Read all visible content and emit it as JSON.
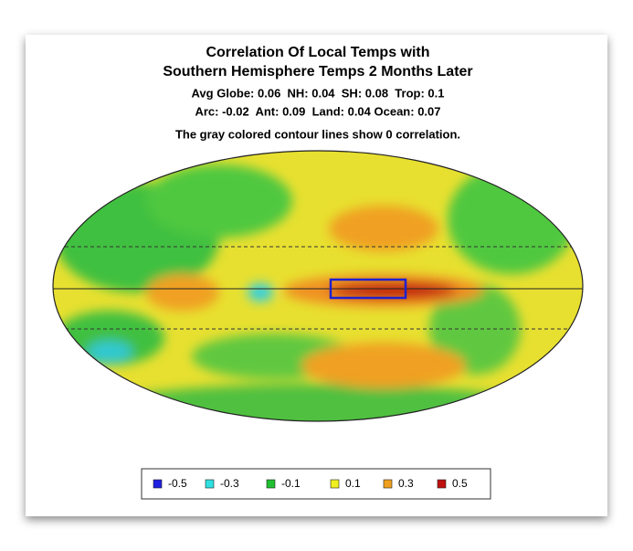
{
  "title": [
    "Correlation Of Local Temps with",
    "Southern Hemisphere Temps 2 Months Later"
  ],
  "stats": [
    "Avg Globe: 0.06  NH: 0.04  SH: 0.08  Trop: 0.1",
    "Arc: -0.02  Ant: 0.09  Land: 0.04 Ocean: 0.07"
  ],
  "note": "The gray colored contour lines show 0 correlation.",
  "legend": [
    {
      "value": -0.5,
      "color": "#2020e0"
    },
    {
      "value": -0.3,
      "color": "#30e0e0"
    },
    {
      "value": -0.1,
      "color": "#20c030"
    },
    {
      "value": 0.1,
      "color": "#f0f020"
    },
    {
      "value": 0.3,
      "color": "#f0a020"
    },
    {
      "value": 0.5,
      "color": "#c01010"
    }
  ]
}
